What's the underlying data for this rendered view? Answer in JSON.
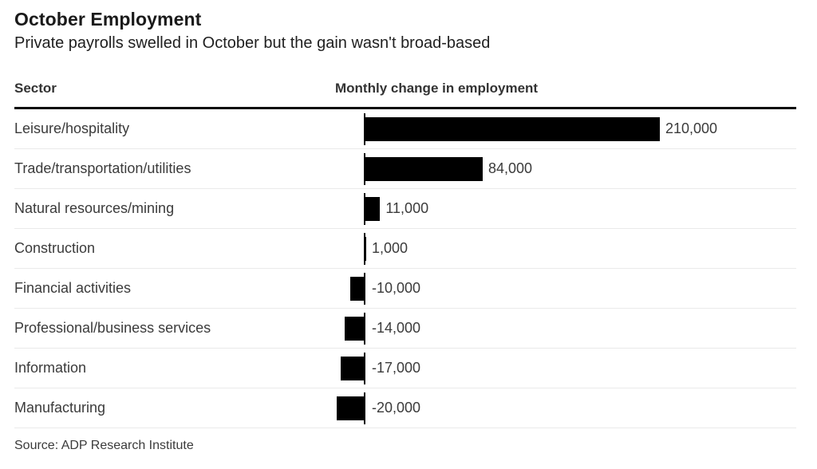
{
  "header": {
    "title": "October Employment",
    "subtitle": "Private payrolls swelled in October but the gain wasn't broad-based"
  },
  "table": {
    "sector_header": "Sector",
    "value_header": "Monthly change in employment"
  },
  "chart_data": {
    "type": "bar",
    "orientation": "horizontal",
    "title": "October Employment",
    "subtitle": "Private payrolls swelled in October but the gain wasn't broad-based",
    "xlabel": "Monthly change in employment",
    "ylabel": "Sector",
    "categories": [
      "Leisure/hospitality",
      "Trade/transportation/utilities",
      "Natural resources/mining",
      "Construction",
      "Financial activities",
      "Professional/business services",
      "Information",
      "Manufacturing"
    ],
    "values": [
      210000,
      84000,
      11000,
      1000,
      -10000,
      -14000,
      -17000,
      -20000
    ],
    "value_labels": [
      "210,000",
      "84,000",
      "11,000",
      "1,000",
      "-10,000",
      "-14,000",
      "-17,000",
      "-20,000"
    ],
    "xlim": [
      -20000,
      210000
    ],
    "grid": false,
    "legend": false,
    "bar_color": "#000000",
    "baseline_color": "#0d0d0d"
  },
  "footer": {
    "source": "Source: ADP Research Institute"
  }
}
